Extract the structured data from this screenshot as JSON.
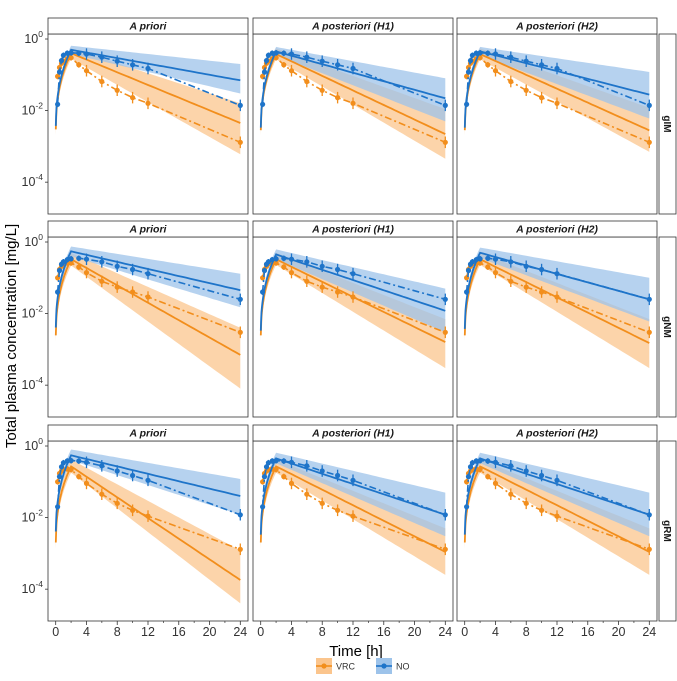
{
  "figure": {
    "ylabel": "Total plasma concentration [mg/L]",
    "xlabel": "Time [h]",
    "colors": {
      "VRC": "#f28e1c",
      "NO": "#1e74c9",
      "VRC_band": "#fbc58d",
      "NO_band": "#9dc3ea"
    },
    "legend": [
      {
        "name": "VRC",
        "color": "#f28e1c"
      },
      {
        "name": "NO",
        "color": "#1e74c9"
      }
    ]
  },
  "chart_data": {
    "type": "line",
    "layout": "faceted 3x3 grid",
    "columns": [
      "A priori",
      "A posteriori (H1)",
      "A posteriori (H2)"
    ],
    "rows": [
      "gIM",
      "gNM",
      "gRM"
    ],
    "x_axis": {
      "label": "Time [h]",
      "range": [
        -1,
        25
      ],
      "ticks": [
        0,
        4,
        8,
        12,
        16,
        20,
        24
      ],
      "minor_ticks": [
        2,
        6,
        10,
        14,
        18,
        22
      ]
    },
    "y_axis": {
      "label": "Total plasma concentration [mg/L]",
      "scale": "log10",
      "range": [
        1.29e-05,
        1.38
      ],
      "tick_exponents": [
        0,
        -2,
        -4
      ]
    },
    "legend_position": "bottom",
    "series_styles": {
      "predicted_median": "solid line",
      "observed_mean": "dash-dot line with points and error bars",
      "prediction_interval": "shaded band"
    },
    "observation_times": [
      0.25,
      0.5,
      0.75,
      1,
      1.5,
      2,
      3,
      4,
      6,
      8,
      10,
      12,
      24
    ],
    "panels": [
      {
        "row": "gIM",
        "column": "A priori",
        "VRC": {
          "observed": [
            0.09,
            0.16,
            0.21,
            0.24,
            0.28,
            0.3,
            0.19,
            0.13,
            0.065,
            0.037,
            0.023,
            0.016,
            0.0013
          ],
          "predicted_median": {
            "peak_time": 2,
            "peak": 0.4,
            "at_24h": 0.0045
          },
          "band": {
            "at_peak": [
              0.28,
              0.55
            ],
            "at_24h": [
              0.0006,
              0.016
            ]
          }
        },
        "NO": {
          "observed": [
            0.015,
            0.12,
            0.25,
            0.35,
            0.4,
            0.41,
            0.4,
            0.38,
            0.31,
            0.24,
            0.19,
            0.15,
            0.014
          ],
          "predicted_median": {
            "peak_time": 2,
            "peak": 0.5,
            "at_24h": 0.07
          },
          "band": {
            "at_peak": [
              0.38,
              0.65
            ],
            "at_24h": [
              0.03,
              0.2
            ]
          }
        }
      },
      {
        "row": "gIM",
        "column": "A posteriori (H1)",
        "VRC": {
          "observed": [
            0.09,
            0.16,
            0.21,
            0.24,
            0.28,
            0.3,
            0.19,
            0.13,
            0.065,
            0.037,
            0.023,
            0.016,
            0.0013
          ],
          "predicted_median": {
            "peak_time": 2,
            "peak": 0.38,
            "at_24h": 0.0022
          },
          "band": {
            "at_peak": [
              0.27,
              0.55
            ],
            "at_24h": [
              0.00045,
              0.011
            ]
          }
        },
        "NO": {
          "observed": [
            0.015,
            0.12,
            0.25,
            0.35,
            0.4,
            0.41,
            0.4,
            0.38,
            0.31,
            0.24,
            0.19,
            0.15,
            0.014
          ],
          "predicted_median": {
            "peak_time": 2,
            "peak": 0.45,
            "at_24h": 0.022
          },
          "band": {
            "at_peak": [
              0.35,
              0.6
            ],
            "at_24h": [
              0.005,
              0.08
            ]
          }
        }
      },
      {
        "row": "gIM",
        "column": "A posteriori (H2)",
        "VRC": {
          "observed": [
            0.09,
            0.16,
            0.21,
            0.24,
            0.28,
            0.3,
            0.19,
            0.13,
            0.065,
            0.037,
            0.023,
            0.016,
            0.0013
          ],
          "predicted_median": {
            "peak_time": 2,
            "peak": 0.38,
            "at_24h": 0.0028
          },
          "band": {
            "at_peak": [
              0.27,
              0.55
            ],
            "at_24h": [
              0.0007,
              0.012
            ]
          }
        },
        "NO": {
          "observed": [
            0.015,
            0.12,
            0.25,
            0.35,
            0.4,
            0.41,
            0.4,
            0.38,
            0.31,
            0.24,
            0.19,
            0.15,
            0.014
          ],
          "predicted_median": {
            "peak_time": 2,
            "peak": 0.45,
            "at_24h": 0.028
          },
          "band": {
            "at_peak": [
              0.35,
              0.6
            ],
            "at_24h": [
              0.006,
              0.12
            ]
          }
        }
      },
      {
        "row": "gNM",
        "column": "A priori",
        "VRC": {
          "observed": [
            0.1,
            0.17,
            0.21,
            0.25,
            0.26,
            0.26,
            0.2,
            0.14,
            0.08,
            0.055,
            0.04,
            0.029,
            0.003
          ],
          "predicted_median": {
            "peak_time": 2,
            "peak": 0.33,
            "at_24h": 0.0007
          },
          "band": {
            "at_peak": [
              0.22,
              0.5
            ],
            "at_24h": [
              8e-05,
              0.004
            ]
          }
        },
        "NO": {
          "observed": [
            0.04,
            0.16,
            0.24,
            0.28,
            0.32,
            0.34,
            0.35,
            0.33,
            0.28,
            0.21,
            0.17,
            0.13,
            0.025
          ],
          "predicted_median": {
            "peak_time": 2,
            "peak": 0.55,
            "at_24h": 0.045
          },
          "band": {
            "at_peak": [
              0.4,
              0.75
            ],
            "at_24h": [
              0.015,
              0.13
            ]
          }
        }
      },
      {
        "row": "gNM",
        "column": "A posteriori (H1)",
        "VRC": {
          "observed": [
            0.1,
            0.17,
            0.21,
            0.25,
            0.26,
            0.26,
            0.2,
            0.14,
            0.08,
            0.055,
            0.04,
            0.029,
            0.003
          ],
          "predicted_median": {
            "peak_time": 2,
            "peak": 0.33,
            "at_24h": 0.0016
          },
          "band": {
            "at_peak": [
              0.23,
              0.5
            ],
            "at_24h": [
              0.0003,
              0.007
            ]
          }
        },
        "NO": {
          "observed": [
            0.04,
            0.16,
            0.24,
            0.28,
            0.32,
            0.34,
            0.35,
            0.33,
            0.28,
            0.21,
            0.17,
            0.13,
            0.025
          ],
          "predicted_median": {
            "peak_time": 2,
            "peak": 0.45,
            "at_24h": 0.012
          },
          "band": {
            "at_peak": [
              0.33,
              0.62
            ],
            "at_24h": [
              0.003,
              0.05
            ]
          }
        }
      },
      {
        "row": "gNM",
        "column": "A posteriori (H2)",
        "VRC": {
          "observed": [
            0.1,
            0.17,
            0.21,
            0.25,
            0.26,
            0.26,
            0.2,
            0.14,
            0.08,
            0.055,
            0.04,
            0.029,
            0.003
          ],
          "predicted_median": {
            "peak_time": 2,
            "peak": 0.33,
            "at_24h": 0.0015
          },
          "band": {
            "at_peak": [
              0.23,
              0.5
            ],
            "at_24h": [
              0.0003,
              0.007
            ]
          }
        },
        "NO": {
          "observed": [
            0.04,
            0.16,
            0.24,
            0.28,
            0.32,
            0.34,
            0.35,
            0.33,
            0.28,
            0.21,
            0.17,
            0.13,
            0.025
          ],
          "predicted_median": {
            "peak_time": 2,
            "peak": 0.5,
            "at_24h": 0.025
          },
          "band": {
            "at_peak": [
              0.36,
              0.7
            ],
            "at_24h": [
              0.006,
              0.1
            ]
          }
        }
      },
      {
        "row": "gRM",
        "column": "A priori",
        "VRC": {
          "observed": [
            0.1,
            0.17,
            0.2,
            0.22,
            0.23,
            0.22,
            0.14,
            0.09,
            0.045,
            0.025,
            0.016,
            0.011,
            0.0013
          ],
          "predicted_median": {
            "peak_time": 2,
            "peak": 0.27,
            "at_24h": 0.00018
          },
          "band": {
            "at_peak": [
              0.18,
              0.42
            ],
            "at_24h": [
              4e-05,
              0.0012
            ]
          }
        },
        "NO": {
          "observed": [
            0.02,
            0.14,
            0.26,
            0.34,
            0.38,
            0.39,
            0.38,
            0.35,
            0.28,
            0.2,
            0.15,
            0.11,
            0.012
          ],
          "predicted_median": {
            "peak_time": 2,
            "peak": 0.55,
            "at_24h": 0.04
          },
          "band": {
            "at_peak": [
              0.4,
              0.8
            ],
            "at_24h": [
              0.012,
              0.12
            ]
          }
        }
      },
      {
        "row": "gRM",
        "column": "A posteriori (H1)",
        "VRC": {
          "observed": [
            0.1,
            0.17,
            0.2,
            0.22,
            0.23,
            0.22,
            0.14,
            0.09,
            0.045,
            0.025,
            0.016,
            0.011,
            0.0013
          ],
          "predicted_median": {
            "peak_time": 2,
            "peak": 0.27,
            "at_24h": 0.0011
          },
          "band": {
            "at_peak": [
              0.18,
              0.42
            ],
            "at_24h": [
              0.00025,
              0.005
            ]
          }
        },
        "NO": {
          "observed": [
            0.02,
            0.14,
            0.26,
            0.34,
            0.38,
            0.39,
            0.38,
            0.35,
            0.28,
            0.2,
            0.15,
            0.11,
            0.012
          ],
          "predicted_median": {
            "peak_time": 2,
            "peak": 0.45,
            "at_24h": 0.012
          },
          "band": {
            "at_peak": [
              0.33,
              0.65
            ],
            "at_24h": [
              0.003,
              0.05
            ]
          }
        }
      },
      {
        "row": "gRM",
        "column": "A posteriori (H2)",
        "VRC": {
          "observed": [
            0.1,
            0.17,
            0.2,
            0.22,
            0.23,
            0.22,
            0.14,
            0.09,
            0.045,
            0.025,
            0.016,
            0.011,
            0.0013
          ],
          "predicted_median": {
            "peak_time": 2,
            "peak": 0.27,
            "at_24h": 0.0011
          },
          "band": {
            "at_peak": [
              0.18,
              0.42
            ],
            "at_24h": [
              0.00025,
              0.005
            ]
          }
        },
        "NO": {
          "observed": [
            0.02,
            0.14,
            0.26,
            0.34,
            0.38,
            0.39,
            0.38,
            0.35,
            0.28,
            0.2,
            0.15,
            0.11,
            0.012
          ],
          "predicted_median": {
            "peak_time": 2,
            "peak": 0.45,
            "at_24h": 0.012
          },
          "band": {
            "at_peak": [
              0.33,
              0.65
            ],
            "at_24h": [
              0.003,
              0.05
            ]
          }
        }
      }
    ]
  }
}
